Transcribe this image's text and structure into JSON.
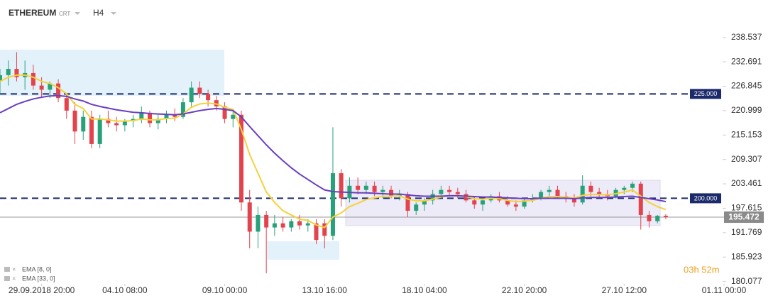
{
  "header": {
    "symbol": "ETHEREUM",
    "feed": "CRT",
    "timeframe": "H4",
    "countdown": "03h 52m"
  },
  "chart_data": {
    "type": "candlestick",
    "up_color": "#27a17a",
    "down_color": "#e2434c",
    "xlim": [
      0,
      87
    ],
    "xticks": [
      {
        "value": 5,
        "label": "29.09.2018  20:00"
      },
      {
        "value": 15,
        "label": "04.10  08:00"
      },
      {
        "value": 27,
        "label": "09.10  00:00"
      },
      {
        "value": 39,
        "label": "13.10  16:00"
      },
      {
        "value": 51,
        "label": "18.10  04:00"
      },
      {
        "value": 63,
        "label": "22.10  20:00"
      },
      {
        "value": 75,
        "label": "27.10  12:00"
      },
      {
        "value": 87,
        "label": "01.11  00:00"
      }
    ],
    "ylim": [
      179.5,
      247.5
    ],
    "yticks": [
      238.537,
      232.691,
      226.845,
      220.999,
      215.153,
      209.307,
      203.461,
      197.615,
      191.769,
      185.923,
      180.077
    ],
    "open": [
      228,
      229.5,
      231,
      229,
      230,
      227,
      226,
      227.5,
      224,
      221,
      216,
      219.5,
      213,
      219,
      218,
      217.5,
      218.5,
      219,
      220.5,
      218,
      219,
      220,
      219.5,
      223,
      226.5,
      225,
      223.5,
      222,
      219,
      220,
      199,
      192,
      196,
      193,
      194,
      193,
      194.5,
      193.5,
      194,
      194,
      191,
      206,
      200,
      203,
      202,
      203,
      201.5,
      202,
      200.5,
      201,
      197,
      198.5,
      199.5,
      201,
      202,
      201.5,
      201,
      199.5,
      198.5,
      199.5,
      200.5,
      199.5,
      198.5,
      198,
      199.5,
      200,
      201.5,
      202,
      200.5,
      200,
      199,
      203,
      201.5,
      201,
      200.5,
      202,
      202.5,
      203.5,
      196,
      194.5,
      195.8
    ],
    "high": [
      231,
      233,
      235,
      233,
      232,
      229,
      228,
      228.5,
      225,
      223,
      221,
      221,
      220,
      221,
      219.5,
      219,
      220,
      222,
      221,
      220,
      221,
      221.5,
      224,
      228,
      228,
      226,
      224.5,
      223,
      221,
      221,
      202,
      198,
      197,
      196,
      195.5,
      195,
      196,
      195,
      195,
      195,
      217,
      207,
      205,
      205,
      204,
      204,
      203,
      203,
      202,
      201.5,
      199,
      200,
      202,
      203,
      203,
      202.5,
      202,
      200.5,
      200,
      201,
      201.5,
      200.5,
      199.5,
      200,
      201,
      202,
      203,
      203,
      201.5,
      201,
      205.5,
      204,
      202.5,
      202,
      202.5,
      203,
      204,
      204,
      197,
      196,
      196.2
    ],
    "low": [
      225,
      227,
      228,
      226,
      226,
      224,
      224,
      223,
      219,
      213,
      214,
      212,
      212,
      217,
      216,
      216,
      217,
      218,
      217,
      216.5,
      218,
      218.5,
      219,
      222,
      224,
      222,
      221,
      218,
      217,
      197,
      188,
      188,
      182,
      191,
      192,
      192,
      192.5,
      192,
      189,
      188,
      190,
      198,
      199,
      201,
      201,
      200.5,
      200,
      200,
      199.5,
      195.5,
      196,
      197,
      198.5,
      200,
      200.5,
      200,
      199,
      197.5,
      197,
      199,
      199,
      198,
      197,
      197.5,
      199,
      199.5,
      200.5,
      200,
      199,
      198,
      198.5,
      200.5,
      200,
      199.5,
      200,
      201,
      201.5,
      192.5,
      193,
      194,
      195
    ],
    "close": [
      229.5,
      231,
      229,
      230,
      227,
      226,
      227.5,
      224,
      221,
      216,
      219.5,
      213,
      219,
      218,
      217.5,
      218.5,
      219,
      220.5,
      218,
      219,
      220,
      219.5,
      223,
      226.5,
      225,
      223.5,
      222,
      219,
      220,
      199,
      192,
      196,
      193,
      194,
      193,
      194.5,
      193.5,
      194,
      190,
      191,
      206,
      200,
      203,
      202,
      203,
      201.5,
      202,
      200.5,
      201,
      197,
      198.5,
      199.5,
      201,
      202,
      201.5,
      201,
      199.5,
      198.5,
      199.5,
      200.5,
      199.5,
      198.5,
      198,
      199.5,
      200,
      201.5,
      202,
      200.5,
      200,
      199,
      203,
      201.5,
      201,
      200.5,
      202,
      202.5,
      203.5,
      196,
      194.5,
      195.8,
      195.472
    ],
    "overlays": [
      {
        "name": "EMA [8, 0]",
        "color": "#f4d23a",
        "values": [
          228,
          229,
          229.5,
          229.5,
          229,
          228,
          227.5,
          226.5,
          225,
          222.5,
          221.5,
          219,
          219,
          218.8,
          218.5,
          218.5,
          218.6,
          219,
          218.8,
          218.8,
          219.1,
          219.2,
          220.2,
          221.8,
          222.6,
          222.8,
          222.6,
          221.8,
          221.3,
          216.5,
          210.5,
          206,
          201.5,
          199,
          197,
          196,
          195,
          194.7,
          193.6,
          193,
          195.5,
          196.5,
          198,
          198.8,
          199.7,
          200.1,
          200.5,
          200.5,
          200.6,
          199.8,
          199.4,
          199.4,
          199.8,
          200.3,
          200.6,
          200.7,
          200.4,
          199.9,
          199.8,
          200,
          199.9,
          199.5,
          199.2,
          199.3,
          199.5,
          200,
          200.4,
          200.4,
          200.3,
          200,
          200.7,
          200.9,
          200.9,
          200.8,
          201.1,
          201.5,
          202,
          200.5,
          199,
          198,
          197.3
        ]
      },
      {
        "name": "EMA [33, 0]",
        "color": "#6a3fbf",
        "values": [
          220.5,
          221.5,
          222.5,
          223.2,
          223.8,
          224.2,
          224.5,
          224.6,
          224.4,
          223.8,
          223.3,
          222.5,
          222,
          221.6,
          221.2,
          220.9,
          220.6,
          220.5,
          220.3,
          220.2,
          220.1,
          220,
          220.2,
          220.6,
          221,
          221.3,
          221.5,
          221.3,
          221,
          219.5,
          217.2,
          215,
          212.8,
          210.8,
          209,
          207.3,
          205.8,
          204.5,
          203.2,
          202,
          201.6,
          201.5,
          201.4,
          201.3,
          201.3,
          201.2,
          201.1,
          201,
          201,
          200.8,
          200.6,
          200.5,
          200.5,
          200.5,
          200.6,
          200.6,
          200.5,
          200.4,
          200.3,
          200.3,
          200.2,
          200.1,
          200,
          199.9,
          199.9,
          200,
          200,
          200,
          200,
          199.9,
          200.1,
          200.2,
          200.2,
          200.2,
          200.3,
          200.4,
          200.5,
          200.2,
          199.9,
          199.6,
          199.2
        ]
      }
    ],
    "levels": [
      {
        "value": 225,
        "label": "225.000"
      },
      {
        "value": 200,
        "label": "200.000"
      }
    ],
    "level_color": "#1c2a6b",
    "last_price": 195.472
  }
}
